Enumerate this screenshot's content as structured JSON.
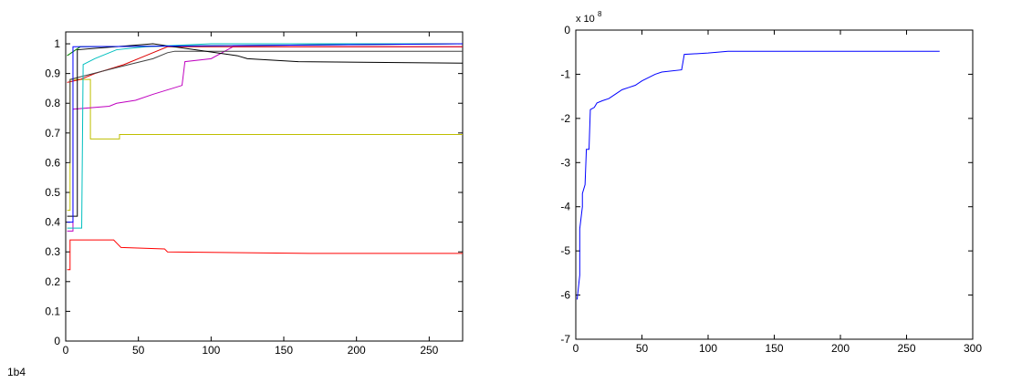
{
  "chart_data": [
    {
      "type": "line",
      "annotation": "1b4",
      "xlim": [
        0,
        273
      ],
      "ylim": [
        0,
        1.04
      ],
      "xticks": [
        0,
        50,
        100,
        150,
        200,
        250
      ],
      "yticks": [
        0,
        0.1,
        0.2,
        0.3,
        0.4,
        0.5,
        0.6,
        0.7,
        0.8,
        0.9,
        1
      ],
      "grid": false,
      "series": [
        {
          "color": "#ff0000",
          "x": [
            1,
            3,
            3,
            33,
            35,
            38,
            68,
            70,
            168,
            273
          ],
          "values": [
            0.24,
            0.24,
            0.34,
            0.34,
            0.33,
            0.315,
            0.31,
            0.3,
            0.295,
            0.295
          ]
        },
        {
          "color": "#bfbf00",
          "x": [
            1,
            3,
            3,
            17,
            17,
            37,
            37,
            273
          ],
          "values": [
            0.44,
            0.44,
            0.88,
            0.88,
            0.68,
            0.68,
            0.695,
            0.695
          ]
        },
        {
          "color": "#bf00bf",
          "x": [
            1,
            5,
            5,
            30,
            35,
            48,
            60,
            80,
            82,
            100,
            115,
            273
          ],
          "values": [
            0.37,
            0.37,
            0.78,
            0.79,
            0.8,
            0.81,
            0.83,
            0.86,
            0.94,
            0.95,
            0.99,
            0.99
          ]
        },
        {
          "color": "#dd0000",
          "x": [
            1,
            10,
            20,
            40,
            55,
            70,
            273
          ],
          "values": [
            0.87,
            0.88,
            0.9,
            0.93,
            0.96,
            0.99,
            0.99
          ]
        },
        {
          "color": "#404040",
          "x": [
            1,
            3,
            3,
            35,
            60,
            70,
            75,
            273
          ],
          "values": [
            0.6,
            0.6,
            0.88,
            0.92,
            0.95,
            0.97,
            0.975,
            0.975
          ]
        },
        {
          "color": "#000000",
          "x": [
            1,
            8,
            8,
            60,
            118,
            125,
            160,
            273
          ],
          "values": [
            0.42,
            0.42,
            0.98,
            1,
            0.96,
            0.95,
            0.94,
            0.935
          ]
        },
        {
          "color": "#00bfbf",
          "x": [
            1,
            11,
            12,
            20,
            35,
            55,
            100,
            273
          ],
          "values": [
            0.38,
            0.38,
            0.93,
            0.95,
            0.98,
            0.99,
            1,
            1
          ]
        },
        {
          "color": "#008000",
          "x": [
            1,
            10,
            273
          ],
          "values": [
            0.96,
            0.99,
            1
          ]
        },
        {
          "color": "#0000ff",
          "x": [
            1,
            5,
            5,
            273
          ],
          "values": [
            0.4,
            0.4,
            0.99,
            1
          ]
        }
      ]
    },
    {
      "type": "line",
      "y_multiplier": "x 10",
      "y_multiplier_exponent": "8",
      "xlim": [
        0,
        300
      ],
      "ylim": [
        -7,
        0
      ],
      "xticks": [
        0,
        50,
        100,
        150,
        200,
        250,
        300
      ],
      "yticks": [
        -7,
        -6,
        -5,
        -4,
        -3,
        -2,
        -1,
        0
      ],
      "grid": false,
      "series": [
        {
          "color": "#0000ff",
          "x": [
            1,
            3,
            3,
            5,
            5,
            7,
            8,
            10,
            11,
            14,
            16,
            20,
            25,
            30,
            35,
            40,
            45,
            50,
            60,
            65,
            80,
            82,
            100,
            115,
            275
          ],
          "values": [
            -6.1,
            -5.55,
            -4.5,
            -4.0,
            -3.7,
            -3.5,
            -2.7,
            -2.7,
            -1.8,
            -1.75,
            -1.65,
            -1.6,
            -1.55,
            -1.45,
            -1.35,
            -1.3,
            -1.25,
            -1.15,
            -1.0,
            -0.95,
            -0.9,
            -0.55,
            -0.52,
            -0.48,
            -0.48
          ]
        }
      ]
    }
  ]
}
